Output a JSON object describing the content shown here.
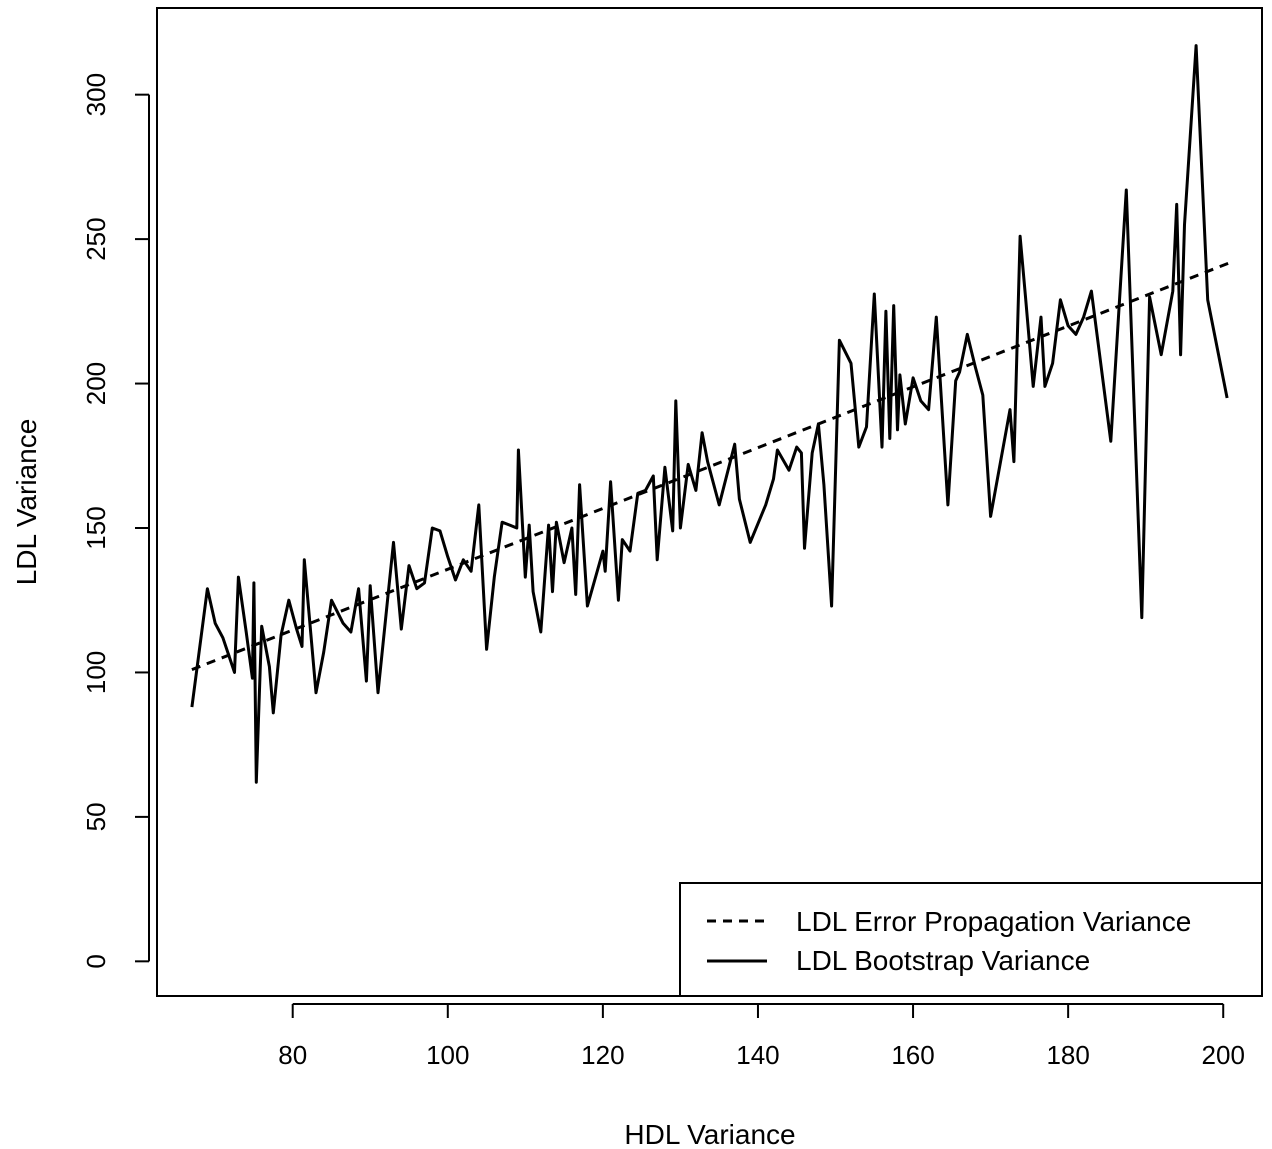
{
  "chart_data": {
    "type": "line",
    "title": "",
    "xlabel": "HDL Variance",
    "ylabel": "LDL Variance",
    "xlim": [
      62.5,
      205
    ],
    "ylim": [
      -12,
      330
    ],
    "xticks": [
      80,
      100,
      120,
      140,
      160,
      180,
      200
    ],
    "yticks": [
      0,
      50,
      100,
      150,
      200,
      250,
      300
    ],
    "grid": false,
    "legend_position": "bottom-right",
    "series": [
      {
        "name": "LDL Error Propagation Variance",
        "style": "dashed",
        "color": "#000000",
        "x": [
          67,
          201
        ],
        "y": [
          101,
          242
        ]
      },
      {
        "name": "LDL Bootstrap Variance",
        "style": "solid",
        "color": "#000000",
        "x": [
          67,
          69,
          70,
          71,
          72.5,
          73,
          74,
          74.8,
          75,
          75.3,
          76,
          77,
          77.5,
          78.5,
          79.5,
          80.5,
          81.2,
          81.5,
          83,
          84,
          85,
          86.5,
          87.5,
          88.5,
          89.5,
          90,
          91,
          92.5,
          93,
          94,
          95,
          96,
          97,
          98,
          99,
          100,
          101,
          102,
          103,
          104,
          105,
          106,
          107,
          108,
          108.9,
          109.1,
          110,
          110.5,
          111,
          112,
          113,
          113.5,
          114,
          115,
          116,
          116.5,
          117,
          118,
          120,
          120.3,
          121,
          122,
          122.5,
          123.5,
          124.5,
          125.5,
          126.5,
          127,
          128,
          129,
          129.4,
          130,
          131,
          132,
          132.8,
          133.5,
          135,
          137,
          137.6,
          139,
          141,
          142,
          142.5,
          144,
          145,
          145.6,
          146,
          147,
          147.8,
          148.5,
          149.5,
          150.5,
          152,
          153,
          154,
          155,
          156,
          156.5,
          157,
          157.5,
          158,
          158.3,
          159,
          160,
          161,
          162,
          163,
          164.5,
          165.5,
          166,
          167,
          168,
          169,
          170,
          172.5,
          173,
          173.8,
          174.5,
          175.5,
          176.5,
          177,
          178,
          179,
          180,
          181,
          182,
          183,
          185.5,
          187.5,
          189.5,
          190.5,
          192,
          193.5,
          194,
          194.5,
          195,
          196.5,
          198,
          200.5
        ],
        "y": [
          88,
          129,
          117,
          112,
          100,
          133,
          114,
          98,
          131,
          62,
          116,
          102,
          86,
          113,
          125,
          115,
          109,
          139,
          93,
          107,
          125,
          117,
          114,
          129,
          97,
          130,
          93,
          132,
          145,
          115,
          137,
          129,
          131,
          150,
          149,
          140,
          132,
          139,
          135,
          158,
          108,
          133,
          152,
          151,
          150,
          177,
          133,
          151,
          128,
          114,
          151,
          128,
          152,
          138,
          150,
          127,
          165,
          123,
          142,
          135,
          166,
          125,
          146,
          142,
          162,
          163,
          168,
          139,
          171,
          149,
          194,
          150,
          172,
          163,
          183,
          173,
          158,
          179,
          160,
          145,
          158,
          167,
          177,
          170,
          178,
          176,
          143,
          176,
          186,
          165,
          123,
          215,
          207,
          178,
          185,
          231,
          178,
          225,
          181,
          227,
          184,
          203,
          186,
          202,
          194,
          191,
          223,
          158,
          201,
          204,
          217,
          206,
          196,
          154,
          191,
          173,
          251,
          230,
          199,
          223,
          199,
          207,
          229,
          220,
          217,
          223,
          232,
          180,
          267,
          119,
          230,
          210,
          232,
          262,
          210,
          255,
          317,
          229,
          195
        ]
      }
    ]
  }
}
